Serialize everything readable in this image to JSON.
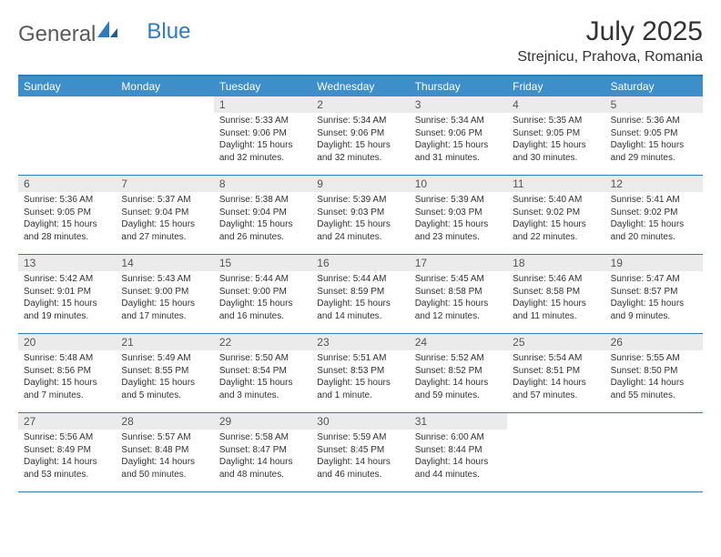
{
  "brand": {
    "part1": "General",
    "part2": "Blue"
  },
  "title": "July 2025",
  "location": "Strejnicu, Prahova, Romania",
  "colors": {
    "header_bg": "#3d8ec9",
    "border": "#2f7bbf",
    "daynum_bg": "#ebebeb",
    "text": "#333333",
    "white": "#ffffff"
  },
  "weekdays": [
    "Sunday",
    "Monday",
    "Tuesday",
    "Wednesday",
    "Thursday",
    "Friday",
    "Saturday"
  ],
  "weeks": [
    [
      {
        "n": "",
        "lines": []
      },
      {
        "n": "",
        "lines": []
      },
      {
        "n": "1",
        "lines": [
          "Sunrise: 5:33 AM",
          "Sunset: 9:06 PM",
          "Daylight: 15 hours and 32 minutes."
        ]
      },
      {
        "n": "2",
        "lines": [
          "Sunrise: 5:34 AM",
          "Sunset: 9:06 PM",
          "Daylight: 15 hours and 32 minutes."
        ]
      },
      {
        "n": "3",
        "lines": [
          "Sunrise: 5:34 AM",
          "Sunset: 9:06 PM",
          "Daylight: 15 hours and 31 minutes."
        ]
      },
      {
        "n": "4",
        "lines": [
          "Sunrise: 5:35 AM",
          "Sunset: 9:05 PM",
          "Daylight: 15 hours and 30 minutes."
        ]
      },
      {
        "n": "5",
        "lines": [
          "Sunrise: 5:36 AM",
          "Sunset: 9:05 PM",
          "Daylight: 15 hours and 29 minutes."
        ]
      }
    ],
    [
      {
        "n": "6",
        "lines": [
          "Sunrise: 5:36 AM",
          "Sunset: 9:05 PM",
          "Daylight: 15 hours and 28 minutes."
        ]
      },
      {
        "n": "7",
        "lines": [
          "Sunrise: 5:37 AM",
          "Sunset: 9:04 PM",
          "Daylight: 15 hours and 27 minutes."
        ]
      },
      {
        "n": "8",
        "lines": [
          "Sunrise: 5:38 AM",
          "Sunset: 9:04 PM",
          "Daylight: 15 hours and 26 minutes."
        ]
      },
      {
        "n": "9",
        "lines": [
          "Sunrise: 5:39 AM",
          "Sunset: 9:03 PM",
          "Daylight: 15 hours and 24 minutes."
        ]
      },
      {
        "n": "10",
        "lines": [
          "Sunrise: 5:39 AM",
          "Sunset: 9:03 PM",
          "Daylight: 15 hours and 23 minutes."
        ]
      },
      {
        "n": "11",
        "lines": [
          "Sunrise: 5:40 AM",
          "Sunset: 9:02 PM",
          "Daylight: 15 hours and 22 minutes."
        ]
      },
      {
        "n": "12",
        "lines": [
          "Sunrise: 5:41 AM",
          "Sunset: 9:02 PM",
          "Daylight: 15 hours and 20 minutes."
        ]
      }
    ],
    [
      {
        "n": "13",
        "lines": [
          "Sunrise: 5:42 AM",
          "Sunset: 9:01 PM",
          "Daylight: 15 hours and 19 minutes."
        ]
      },
      {
        "n": "14",
        "lines": [
          "Sunrise: 5:43 AM",
          "Sunset: 9:00 PM",
          "Daylight: 15 hours and 17 minutes."
        ]
      },
      {
        "n": "15",
        "lines": [
          "Sunrise: 5:44 AM",
          "Sunset: 9:00 PM",
          "Daylight: 15 hours and 16 minutes."
        ]
      },
      {
        "n": "16",
        "lines": [
          "Sunrise: 5:44 AM",
          "Sunset: 8:59 PM",
          "Daylight: 15 hours and 14 minutes."
        ]
      },
      {
        "n": "17",
        "lines": [
          "Sunrise: 5:45 AM",
          "Sunset: 8:58 PM",
          "Daylight: 15 hours and 12 minutes."
        ]
      },
      {
        "n": "18",
        "lines": [
          "Sunrise: 5:46 AM",
          "Sunset: 8:58 PM",
          "Daylight: 15 hours and 11 minutes."
        ]
      },
      {
        "n": "19",
        "lines": [
          "Sunrise: 5:47 AM",
          "Sunset: 8:57 PM",
          "Daylight: 15 hours and 9 minutes."
        ]
      }
    ],
    [
      {
        "n": "20",
        "lines": [
          "Sunrise: 5:48 AM",
          "Sunset: 8:56 PM",
          "Daylight: 15 hours and 7 minutes."
        ]
      },
      {
        "n": "21",
        "lines": [
          "Sunrise: 5:49 AM",
          "Sunset: 8:55 PM",
          "Daylight: 15 hours and 5 minutes."
        ]
      },
      {
        "n": "22",
        "lines": [
          "Sunrise: 5:50 AM",
          "Sunset: 8:54 PM",
          "Daylight: 15 hours and 3 minutes."
        ]
      },
      {
        "n": "23",
        "lines": [
          "Sunrise: 5:51 AM",
          "Sunset: 8:53 PM",
          "Daylight: 15 hours and 1 minute."
        ]
      },
      {
        "n": "24",
        "lines": [
          "Sunrise: 5:52 AM",
          "Sunset: 8:52 PM",
          "Daylight: 14 hours and 59 minutes."
        ]
      },
      {
        "n": "25",
        "lines": [
          "Sunrise: 5:54 AM",
          "Sunset: 8:51 PM",
          "Daylight: 14 hours and 57 minutes."
        ]
      },
      {
        "n": "26",
        "lines": [
          "Sunrise: 5:55 AM",
          "Sunset: 8:50 PM",
          "Daylight: 14 hours and 55 minutes."
        ]
      }
    ],
    [
      {
        "n": "27",
        "lines": [
          "Sunrise: 5:56 AM",
          "Sunset: 8:49 PM",
          "Daylight: 14 hours and 53 minutes."
        ]
      },
      {
        "n": "28",
        "lines": [
          "Sunrise: 5:57 AM",
          "Sunset: 8:48 PM",
          "Daylight: 14 hours and 50 minutes."
        ]
      },
      {
        "n": "29",
        "lines": [
          "Sunrise: 5:58 AM",
          "Sunset: 8:47 PM",
          "Daylight: 14 hours and 48 minutes."
        ]
      },
      {
        "n": "30",
        "lines": [
          "Sunrise: 5:59 AM",
          "Sunset: 8:45 PM",
          "Daylight: 14 hours and 46 minutes."
        ]
      },
      {
        "n": "31",
        "lines": [
          "Sunrise: 6:00 AM",
          "Sunset: 8:44 PM",
          "Daylight: 14 hours and 44 minutes."
        ]
      },
      {
        "n": "",
        "lines": []
      },
      {
        "n": "",
        "lines": []
      }
    ]
  ]
}
